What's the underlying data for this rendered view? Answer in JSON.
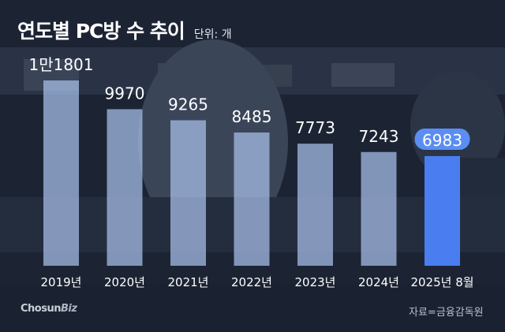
{
  "header": {
    "title": "연도별 PC방 수 추이",
    "unit": "단위: 개"
  },
  "footer": {
    "source": "자료=금융감독원",
    "logo_part1": "Chosun",
    "logo_part2": "Biz"
  },
  "colors": {
    "bar": "#a9c1ec",
    "highlight_bar": "#4a7ef0",
    "highlight_label_bg": "#5b8ef3",
    "background": "#1b2333"
  },
  "chart_data": {
    "type": "bar",
    "title": "연도별 PC방 수 추이",
    "ylabel": "단위: 개",
    "categories": [
      "2019년",
      "2020년",
      "2021년",
      "2022년",
      "2023년",
      "2024년",
      "2025년 8월"
    ],
    "values": [
      11801,
      9970,
      9265,
      8485,
      7773,
      7243,
      6983
    ],
    "value_labels": [
      "1만1801",
      "9970",
      "9265",
      "8485",
      "7773",
      "7243",
      "6983"
    ],
    "highlight_index": 6,
    "ylim": [
      0,
      11801
    ],
    "grid": false
  }
}
